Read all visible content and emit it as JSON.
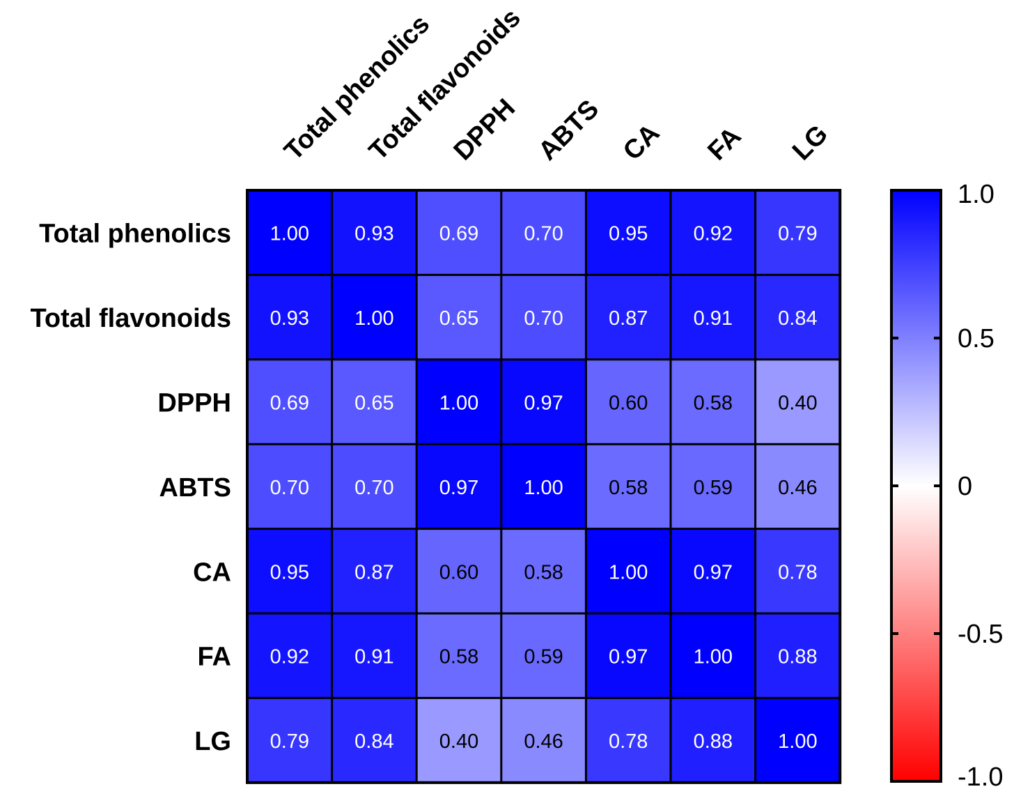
{
  "chart_data": {
    "type": "heatmap",
    "title": "",
    "rows": [
      "Total phenolics",
      "Total flavonoids",
      "DPPH",
      "ABTS",
      "CA",
      "FA",
      "LG"
    ],
    "columns": [
      "Total phenolics",
      "Total flavonoids",
      "DPPH",
      "ABTS",
      "CA",
      "FA",
      "LG"
    ],
    "values": [
      [
        1.0,
        0.93,
        0.69,
        0.7,
        0.95,
        0.92,
        0.79
      ],
      [
        0.93,
        1.0,
        0.65,
        0.7,
        0.87,
        0.91,
        0.84
      ],
      [
        0.69,
        0.65,
        1.0,
        0.97,
        0.6,
        0.58,
        0.4
      ],
      [
        0.7,
        0.7,
        0.97,
        1.0,
        0.58,
        0.59,
        0.46
      ],
      [
        0.95,
        0.87,
        0.6,
        0.58,
        1.0,
        0.97,
        0.78
      ],
      [
        0.92,
        0.91,
        0.58,
        0.59,
        0.97,
        1.0,
        0.88
      ],
      [
        0.79,
        0.84,
        0.4,
        0.46,
        0.78,
        0.88,
        1.0
      ]
    ],
    "value_labels": [
      [
        "1.00",
        "0.93",
        "0.69",
        "0.70",
        "0.95",
        "0.92",
        "0.79"
      ],
      [
        "0.93",
        "1.00",
        "0.65",
        "0.70",
        "0.87",
        "0.91",
        "0.84"
      ],
      [
        "0.69",
        "0.65",
        "1.00",
        "0.97",
        "0.60",
        "0.58",
        "0.40"
      ],
      [
        "0.70",
        "0.70",
        "0.97",
        "1.00",
        "0.58",
        "0.59",
        "0.46"
      ],
      [
        "0.95",
        "0.87",
        "0.60",
        "0.58",
        "1.00",
        "0.97",
        "0.78"
      ],
      [
        "0.92",
        "0.91",
        "0.58",
        "0.59",
        "0.97",
        "1.00",
        "0.88"
      ],
      [
        "0.79",
        "0.84",
        "0.40",
        "0.46",
        "0.78",
        "0.88",
        "1.00"
      ]
    ],
    "colorbar": {
      "range": [
        -1.0,
        1.0
      ],
      "ticks": [
        1.0,
        0.5,
        0,
        -0.5,
        -1.0
      ],
      "tick_labels": [
        "1.0",
        "0.5",
        "0",
        "-0.5",
        "-1.0"
      ],
      "colors": {
        "max": "#0000ff",
        "mid": "#ffffff",
        "min": "#ff0000"
      }
    },
    "legend": "right"
  }
}
